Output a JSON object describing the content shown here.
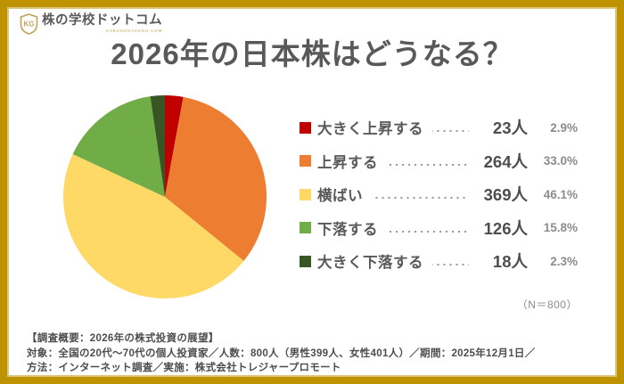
{
  "brand": {
    "name": "株の学校ドットコム",
    "domain_text": "KABUNOGAKKOU.COM",
    "monogram": "KG",
    "gold": "#bf9202"
  },
  "title": "2026年の日本株はどうなる？",
  "chart_data": {
    "type": "pie",
    "title": "2026年の日本株はどうなる？",
    "start_angle_deg_from_12_oclock": 0,
    "direction": "clockwise",
    "categories": [
      "大きく上昇する",
      "上昇する",
      "横ばい",
      "下落する",
      "大きく下落する"
    ],
    "counts": [
      23,
      264,
      369,
      126,
      18
    ],
    "values_percent": [
      2.9,
      33.0,
      46.1,
      15.8,
      2.3
    ],
    "colors": [
      "#c00000",
      "#ed7d31",
      "#ffd966",
      "#70ad47",
      "#375623"
    ],
    "total_n": 800,
    "legend_position": "right"
  },
  "legend": {
    "items": [
      {
        "label": "大きく上昇する",
        "count": "23人",
        "percent": "2.9%"
      },
      {
        "label": "上昇する",
        "count": "264人",
        "percent": "33.0%"
      },
      {
        "label": "横ばい",
        "count": "369人",
        "percent": "46.1%"
      },
      {
        "label": "下落する",
        "count": "126人",
        "percent": "15.8%"
      },
      {
        "label": "大きく下落する",
        "count": "18人",
        "percent": "2.3%"
      }
    ]
  },
  "sample_note": "（N＝800）",
  "footer": {
    "line1": "【調査概要：2026年の株式投資の展望】",
    "line2": "対象：全国の20代〜70代の個人投資家／人数：800人（男性399人、女性401人）／期間：2025年12月1日／",
    "line3": "方法：インターネット調査／実施：株式会社トレジャープロモート"
  }
}
